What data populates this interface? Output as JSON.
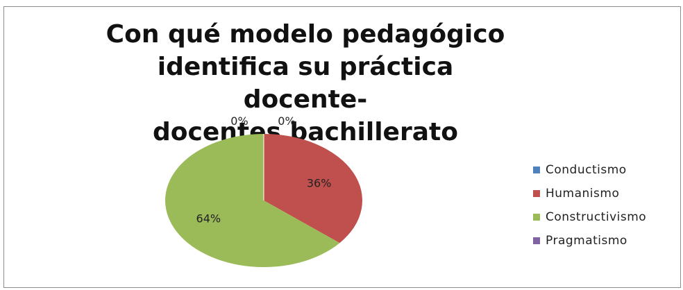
{
  "chart_data": {
    "type": "pie",
    "title": [
      "Con qué modelo pedagógico",
      "identifica su práctica docente-",
      "docentes bachillerato"
    ],
    "slices": [
      {
        "label": "Conductismo",
        "value": 0,
        "display": "0%",
        "color": "#4F81BD"
      },
      {
        "label": "Humanismo",
        "value": 36,
        "display": "36%",
        "color": "#C0504D"
      },
      {
        "label": "Constructivismo",
        "value": 64,
        "display": "64%",
        "color": "#9BBB59"
      },
      {
        "label": "Pragmatismo",
        "value": 0,
        "display": "0%",
        "color": "#8064A2"
      }
    ],
    "legend_position": "right"
  }
}
